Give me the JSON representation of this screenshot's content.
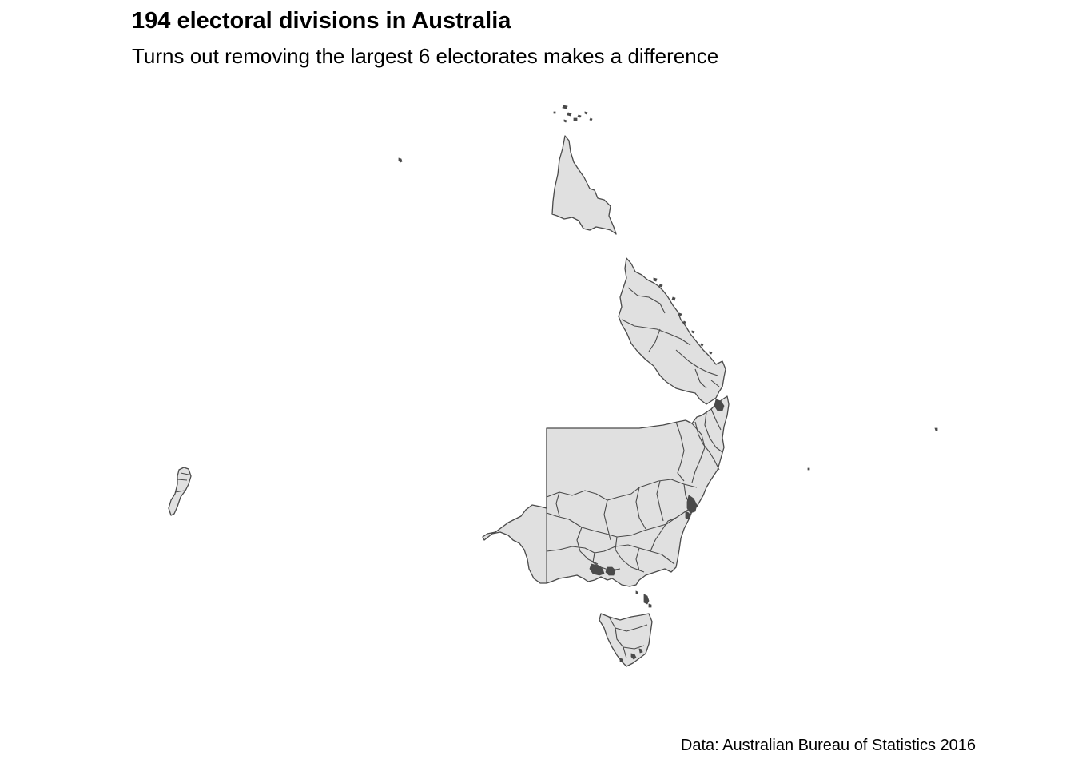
{
  "title": "194 electoral divisions in Australia",
  "subtitle": "Turns out removing the largest 6 electorates makes a difference",
  "caption": "Data: Australian Bureau of Statistics 2016",
  "map": {
    "fill_color": "#e0e0e0",
    "stroke_color": "#4a4a4a",
    "background": "#ffffff"
  }
}
